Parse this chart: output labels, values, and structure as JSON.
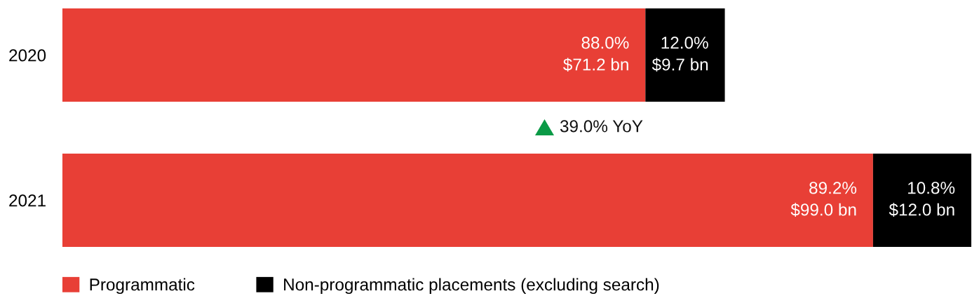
{
  "chart_data": {
    "type": "bar",
    "orientation": "horizontal",
    "stacked": true,
    "categories": [
      "2020",
      "2021"
    ],
    "tick_labels": "y",
    "series": [
      {
        "name": "Programmatic",
        "color": "#e83f36",
        "values": [
          71.2,
          99.0
        ],
        "value_labels": [
          "$71.2 bn",
          "$99.0 bn"
        ]
      },
      {
        "name": "Non-programmatic placements (excluding search)",
        "color": "#000000",
        "values": [
          9.7,
          12.0
        ],
        "value_labels": [
          "$9.7 bn",
          "$12.0 bn"
        ]
      }
    ],
    "annotations": [
      "39.0% YoY",
      {
        "text": "88.0%",
        "x": 71.2,
        "y": "2020"
      },
      {
        "text": "12.0%",
        "x": 80.9,
        "y": "2020"
      },
      {
        "text": "89.2%",
        "x": 99.0,
        "y": "2021"
      },
      {
        "text": "10.8%",
        "x": 111.0,
        "y": "2021"
      }
    ],
    "legend": "bottom left"
  }
}
